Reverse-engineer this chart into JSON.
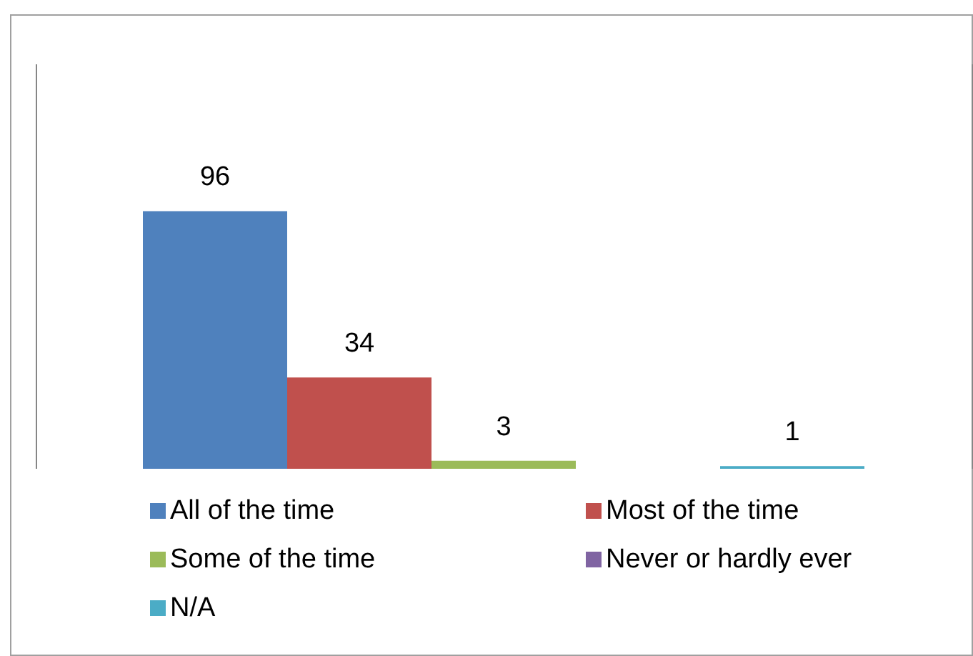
{
  "chart_data": {
    "type": "bar",
    "categories": [
      null
    ],
    "series": [
      {
        "name": "All of the time",
        "color": "#4f81bd",
        "values": [
          96
        ],
        "value_labels": [
          "96"
        ]
      },
      {
        "name": "Most of the time",
        "color": "#c0504d",
        "values": [
          34
        ],
        "value_labels": [
          "34"
        ]
      },
      {
        "name": "Some of the time",
        "color": "#9bbb59",
        "values": [
          3
        ],
        "value_labels": [
          "3"
        ]
      },
      {
        "name": "Never or hardly ever",
        "color": "#8064a2",
        "values": [
          0
        ],
        "value_labels": [
          null
        ]
      },
      {
        "name": "N/A",
        "color": "#4bacc6",
        "values": [
          1
        ],
        "value_labels": [
          "1"
        ]
      }
    ],
    "legend": "bottom",
    "grid": false
  }
}
